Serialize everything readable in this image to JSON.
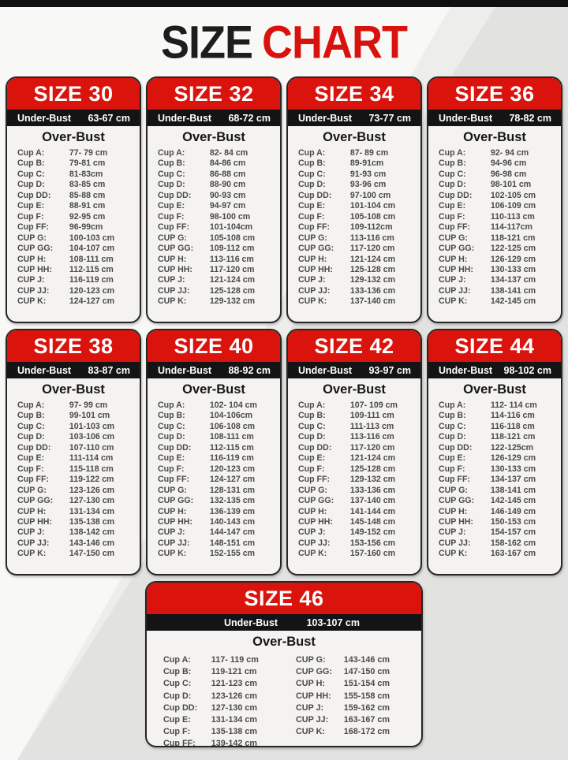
{
  "title": {
    "black": "SIZE",
    "red": "CHART"
  },
  "labels": {
    "under_bust": "Under-Bust",
    "over_bust": "Over-Bust",
    "cups": [
      "Cup A:",
      "Cup B:",
      "Cup C:",
      "Cup D:",
      "Cup DD:",
      "Cup E:",
      "Cup F:",
      "Cup FF:",
      "CUP G:",
      "CUP GG:",
      "CUP H:",
      "CUP HH:",
      "CUP J:",
      "CUP JJ:",
      "CUP K:"
    ]
  },
  "colors": {
    "accent_red": "#da130d",
    "bar_black": "#141414",
    "card_bg": "#f4f3f1",
    "row_text": "#4a4a4a",
    "bg_gray": "#e2e2e1"
  },
  "sizes": [
    {
      "name": "SIZE 30",
      "under_bust": "63-67 cm",
      "values": [
        "77- 79 cm",
        "79-81 cm",
        "81-83cm",
        "83-85 cm",
        "85-88 cm",
        "88-91 cm",
        "92-95 cm",
        "96-99cm",
        "100-103 cm",
        "104-107 cm",
        "108-111 cm",
        "112-115 cm",
        "116-119 cm",
        "120-123 cm",
        "124-127 cm"
      ]
    },
    {
      "name": "SIZE 32",
      "under_bust": "68-72 cm",
      "values": [
        "82- 84 cm",
        "84-86 cm",
        "86-88 cm",
        "88-90 cm",
        "90-93 cm",
        "94-97 cm",
        "98-100 cm",
        "101-104cm",
        "105-108 cm",
        "109-112 cm",
        "113-116 cm",
        "117-120 cm",
        "121-124 cm",
        "125-128 cm",
        "129-132 cm"
      ]
    },
    {
      "name": "SIZE 34",
      "under_bust": "73-77 cm",
      "values": [
        "87- 89 cm",
        "89-91cm",
        "91-93 cm",
        "93-96 cm",
        "97-100 cm",
        "101-104 cm",
        "105-108 cm",
        "109-112cm",
        "113-116 cm",
        "117-120 cm",
        "121-124 cm",
        "125-128 cm",
        "129-132 cm",
        "133-136 cm",
        "137-140 cm"
      ]
    },
    {
      "name": "SIZE 36",
      "under_bust": "78-82 cm",
      "values": [
        "92- 94 cm",
        "94-96 cm",
        "96-98 cm",
        "98-101 cm",
        "102-105 cm",
        "106-109 cm",
        "110-113 cm",
        "114-117cm",
        "118-121 cm",
        "122-125 cm",
        "126-129 cm",
        "130-133 cm",
        "134-137 cm",
        "138-141 cm",
        "142-145 cm"
      ]
    },
    {
      "name": "SIZE 38",
      "under_bust": "83-87 cm",
      "values": [
        "97- 99 cm",
        "99-101 cm",
        "101-103 cm",
        "103-106 cm",
        "107-110 cm",
        "111-114 cm",
        "115-118 cm",
        "119-122 cm",
        "123-126 cm",
        "127-130 cm",
        "131-134 cm",
        "135-138 cm",
        "138-142 cm",
        "143-146 cm",
        "147-150 cm"
      ]
    },
    {
      "name": "SIZE 40",
      "under_bust": "88-92 cm",
      "values": [
        "102- 104 cm",
        "104-106cm",
        "106-108 cm",
        "108-111 cm",
        "112-115 cm",
        "116-119 cm",
        "120-123 cm",
        "124-127 cm",
        "128-131 cm",
        "132-135 cm",
        "136-139 cm",
        "140-143 cm",
        "144-147 cm",
        "148-151 cm",
        "152-155 cm"
      ]
    },
    {
      "name": "SIZE 42",
      "under_bust": "93-97 cm",
      "values": [
        "107- 109 cm",
        "109-111 cm",
        "111-113 cm",
        "113-116 cm",
        "117-120 cm",
        "121-124 cm",
        "125-128 cm",
        "129-132 cm",
        "133-136 cm",
        "137-140 cm",
        "141-144 cm",
        "145-148 cm",
        "149-152 cm",
        "153-156 cm",
        "157-160 cm"
      ]
    },
    {
      "name": "SIZE 44",
      "under_bust": "98-102 cm",
      "values": [
        "112- 114 cm",
        "114-116 cm",
        "116-118 cm",
        "118-121 cm",
        "122-125cm",
        "126-129 cm",
        "130-133 cm",
        "134-137 cm",
        "138-141 cm",
        "142-145 cm",
        "146-149 cm",
        "150-153 cm",
        "154-157 cm",
        "158-162 cm",
        "163-167 cm"
      ]
    },
    {
      "name": "SIZE 46",
      "under_bust": "103-107 cm",
      "wide": true,
      "values": [
        "117- 119 cm",
        "119-121 cm",
        "121-123 cm",
        "123-126 cm",
        "127-130 cm",
        "131-134 cm",
        "135-138 cm",
        "139-142 cm",
        "143-146 cm",
        "147-150 cm",
        "151-154 cm",
        "155-158 cm",
        "159-162 cm",
        "163-167 cm",
        "168-172 cm"
      ]
    }
  ]
}
